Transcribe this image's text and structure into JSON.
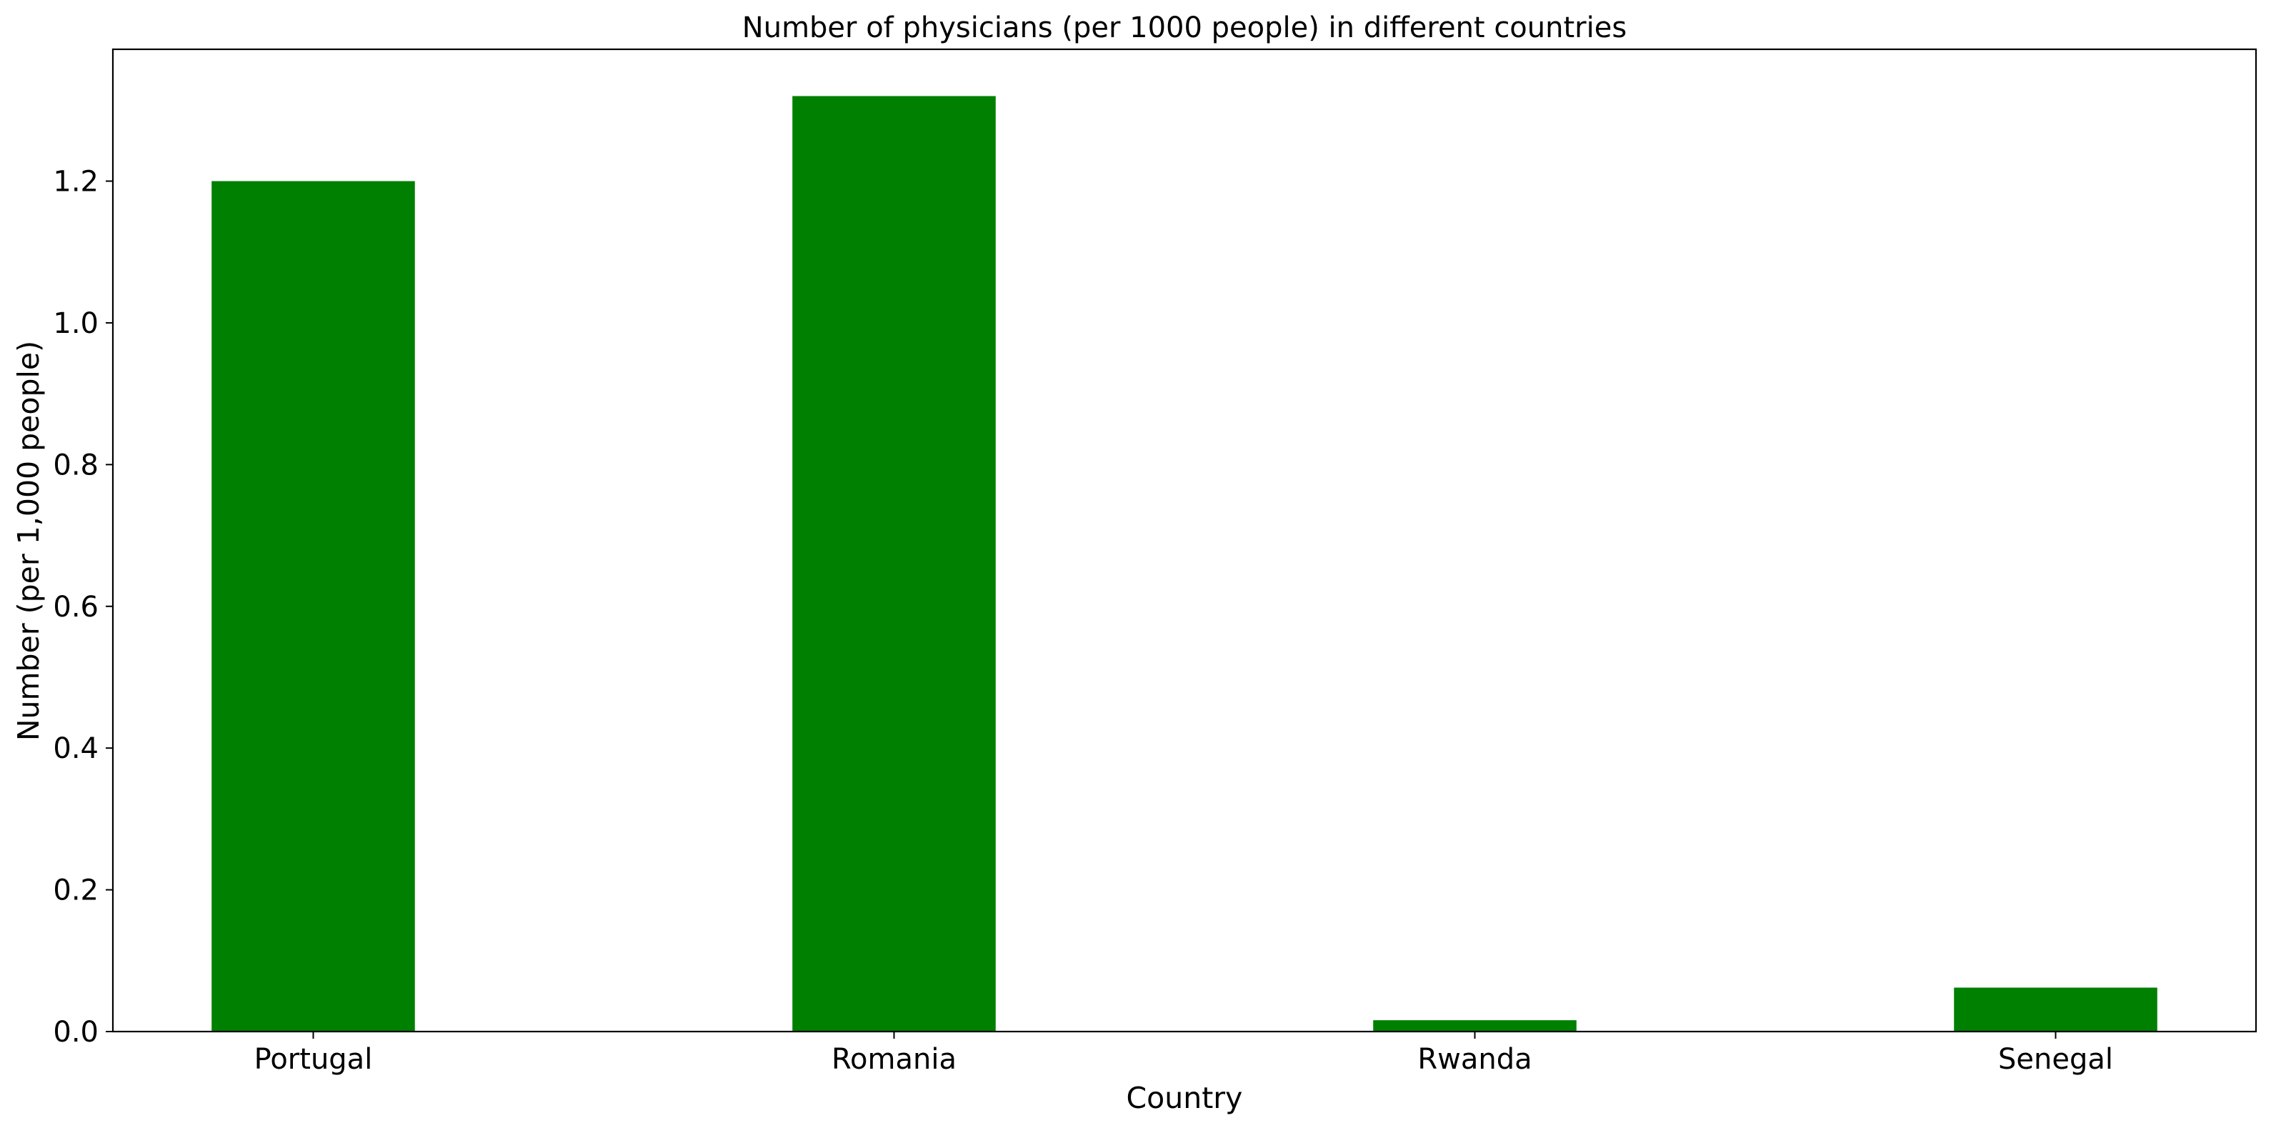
{
  "chart_data": {
    "type": "bar",
    "title": "Number of physicians (per 1000 people) in different countries",
    "xlabel": "Country",
    "ylabel": "Number (per 1,000 people)",
    "categories": [
      "Portugal",
      "Romania",
      "Rwanda",
      "Senegal"
    ],
    "values": [
      1.2,
      1.32,
      0.016,
      0.062
    ],
    "ylim": [
      0,
      1.386
    ],
    "yticks": [
      0.0,
      0.2,
      0.4,
      0.6,
      0.8,
      1.0,
      1.2
    ],
    "ytick_labels": [
      "0.0",
      "0.2",
      "0.4",
      "0.6",
      "0.8",
      "1.0",
      "1.2"
    ],
    "bar_color": "#008000",
    "grid": false,
    "legend": "none"
  }
}
